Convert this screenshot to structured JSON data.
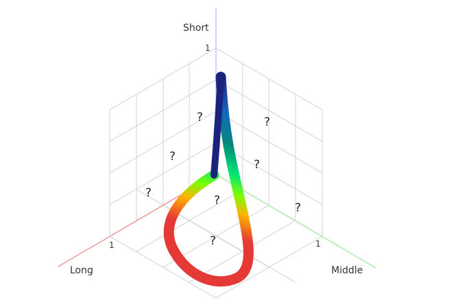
{
  "axes": {
    "short": {
      "label": "Short",
      "tick": "1",
      "color": "#c8c8f0"
    },
    "long": {
      "label": "Long",
      "tick": "1",
      "color": "#f08a8a"
    },
    "middle": {
      "label": "Middle",
      "tick": "1",
      "color": "#9fe09f"
    }
  },
  "markers": [
    "?",
    "?",
    "?",
    "?",
    "?",
    "?",
    "?",
    "?",
    "?",
    "?"
  ],
  "curve": {
    "description_colors": [
      "#1a237e",
      "#1565c0",
      "#00897b",
      "#00e676",
      "#76ff03",
      "#ffb300",
      "#ff6d00",
      "#e53935"
    ]
  }
}
